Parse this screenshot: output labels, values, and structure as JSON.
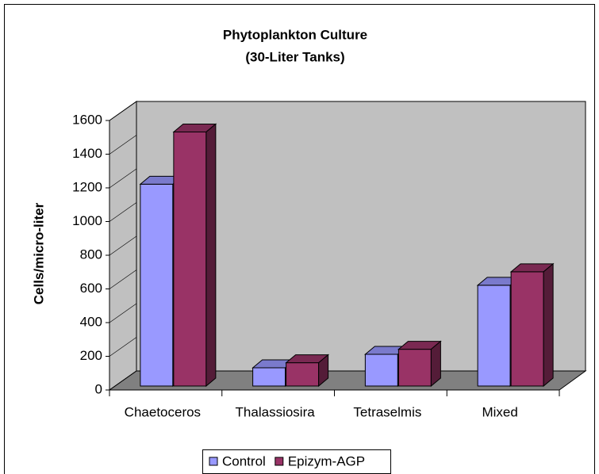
{
  "chart_data": {
    "type": "bar3d",
    "title": "Phytoplankton Culture",
    "subtitle": "(30-Liter Tanks)",
    "y_label": "Cells/micro-liter",
    "categories": [
      "Chaetoceros",
      "Thalassiosira",
      "Tetraselmis",
      "Mixed"
    ],
    "series": [
      {
        "name": "Control",
        "color": "#9999ff",
        "values": [
          1250,
          160,
          240,
          650
        ]
      },
      {
        "name": "Epizym-AGP",
        "color": "#993366",
        "values": [
          1560,
          190,
          270,
          730
        ]
      }
    ],
    "ylim": [
      0,
      1600
    ],
    "yticks": [
      0,
      200,
      400,
      600,
      800,
      1000,
      1200,
      1400,
      1600
    ],
    "legend": "bottom"
  }
}
